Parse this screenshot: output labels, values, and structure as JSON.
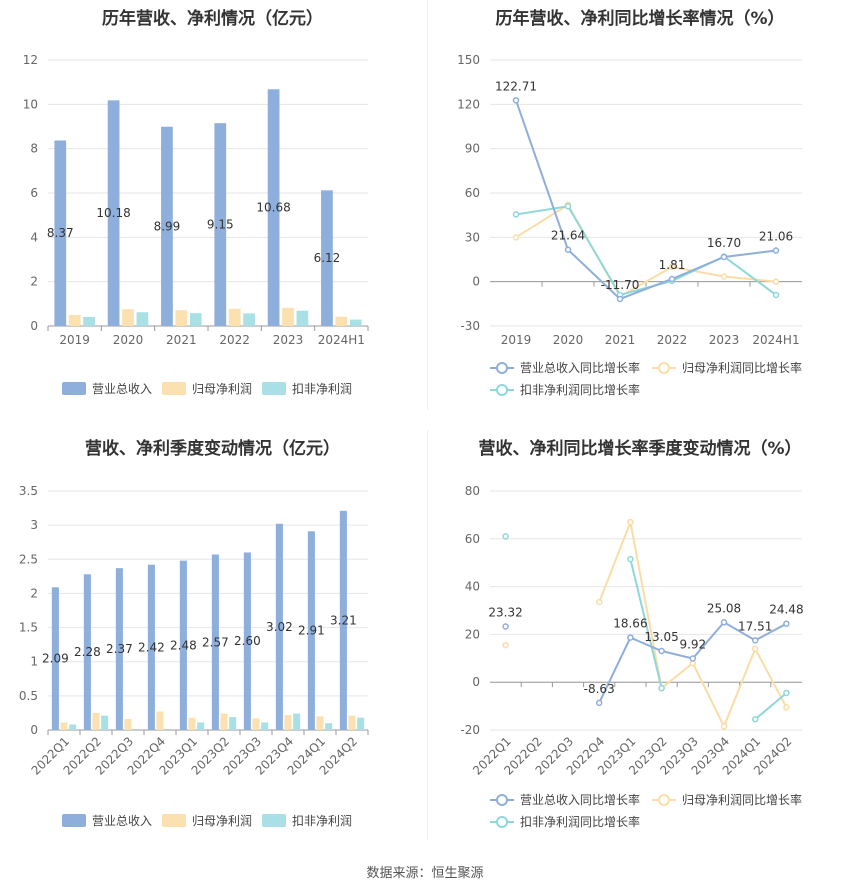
{
  "source": "数据来源：恒生聚源",
  "colors": {
    "revenue": "#8EAEDC",
    "net_profit": "#FBE0B0",
    "deducted_profit": "#A9E0E6",
    "revenue_line": "#8EAEDC",
    "net_profit_line": "#FBDCA6",
    "deducted_profit_line": "#8ED7DA",
    "grid": "#E6E6E6",
    "axis": "#999999"
  },
  "chart_data": [
    {
      "id": "annual-bar",
      "type": "bar",
      "title": "历年营收、净利情况（亿元）",
      "categories": [
        "2019",
        "2020",
        "2021",
        "2022",
        "2023",
        "2024H1"
      ],
      "ylim": [
        0,
        12
      ],
      "yticks": [
        0,
        2,
        4,
        6,
        8,
        10,
        12
      ],
      "series": [
        {
          "name": "营业总收入",
          "values": [
            8.37,
            10.18,
            8.99,
            9.15,
            10.68,
            6.12
          ],
          "labels": [
            "8.37",
            "10.18",
            "8.99",
            "9.15",
            "10.68",
            "6.12"
          ]
        },
        {
          "name": "归母净利润",
          "values": [
            0.5,
            0.76,
            0.71,
            0.78,
            0.82,
            0.42
          ]
        },
        {
          "name": "扣非净利润",
          "values": [
            0.41,
            0.62,
            0.58,
            0.57,
            0.69,
            0.29
          ]
        }
      ],
      "legend": "bottom"
    },
    {
      "id": "annual-line",
      "type": "line",
      "title": "历年营收、净利同比增长率情况（%）",
      "categories": [
        "2019",
        "2020",
        "2021",
        "2022",
        "2023",
        "2024H1"
      ],
      "ylim": [
        -30,
        150
      ],
      "yticks": [
        -30,
        0,
        30,
        60,
        90,
        120,
        150
      ],
      "series": [
        {
          "name": "营业总收入同比增长率",
          "values": [
            122.71,
            21.64,
            -11.7,
            1.81,
            16.7,
            21.06
          ],
          "labels": [
            "122.71",
            "21.64",
            "-11.70",
            "1.81",
            "16.70",
            "21.06"
          ]
        },
        {
          "name": "归母净利润同比增长率",
          "values": [
            30,
            52,
            -10,
            10,
            3.5,
            0
          ]
        },
        {
          "name": "扣非净利润同比增长率",
          "values": [
            45.5,
            51,
            -9,
            0.5,
            17,
            -9
          ]
        }
      ],
      "legend": "bottom"
    },
    {
      "id": "quarter-bar",
      "type": "bar",
      "title": "营收、净利季度变动情况（亿元）",
      "categories": [
        "2022Q1",
        "2022Q2",
        "2022Q3",
        "2022Q4",
        "2023Q1",
        "2023Q2",
        "2023Q3",
        "2023Q4",
        "2024Q1",
        "2024Q2"
      ],
      "ylim": [
        0,
        3.5
      ],
      "yticks": [
        0,
        0.5,
        1,
        1.5,
        2,
        2.5,
        3,
        3.5
      ],
      "series": [
        {
          "name": "营业总收入",
          "values": [
            2.09,
            2.28,
            2.37,
            2.42,
            2.48,
            2.57,
            2.6,
            3.02,
            2.91,
            3.21
          ],
          "labels": [
            "2.09",
            "2.28",
            "2.37",
            "2.42",
            "2.48",
            "2.57",
            "2.60",
            "3.02",
            "2.91",
            "3.21"
          ]
        },
        {
          "name": "归母净利润",
          "values": [
            0.11,
            0.25,
            0.16,
            0.27,
            0.18,
            0.24,
            0.17,
            0.22,
            0.2,
            0.21
          ]
        },
        {
          "name": "扣非净利润",
          "values": [
            0.08,
            0.21,
            null,
            null,
            0.11,
            0.19,
            0.11,
            0.24,
            0.1,
            0.18
          ]
        }
      ],
      "legend": "bottom"
    },
    {
      "id": "quarter-line",
      "type": "line",
      "title": "营收、净利同比增长率季度变动情况（%）",
      "categories": [
        "2022Q1",
        "2022Q2",
        "2022Q3",
        "2022Q4",
        "2023Q1",
        "2023Q2",
        "2023Q3",
        "2023Q4",
        "2024Q1",
        "2024Q2"
      ],
      "ylim": [
        -20,
        80
      ],
      "yticks": [
        -20,
        0,
        20,
        40,
        60,
        80
      ],
      "series": [
        {
          "name": "营业总收入同比增长率",
          "values": [
            23.32,
            null,
            null,
            -8.63,
            18.66,
            13.05,
            9.92,
            25.08,
            17.51,
            24.48
          ],
          "labels": [
            "23.32",
            "",
            "",
            "-8.63",
            "18.66",
            "13.05",
            "9.92",
            "25.08",
            "17.51",
            "24.48"
          ]
        },
        {
          "name": "归母净利润同比增长率",
          "values": [
            15.5,
            null,
            null,
            33.5,
            67,
            -2.5,
            8,
            -18.5,
            14,
            -10.5
          ]
        },
        {
          "name": "扣非净利润同比增长率",
          "values": [
            61,
            null,
            null,
            null,
            51.5,
            -2.5,
            null,
            null,
            -15.5,
            -4.5
          ]
        }
      ],
      "legend": "bottom"
    }
  ]
}
